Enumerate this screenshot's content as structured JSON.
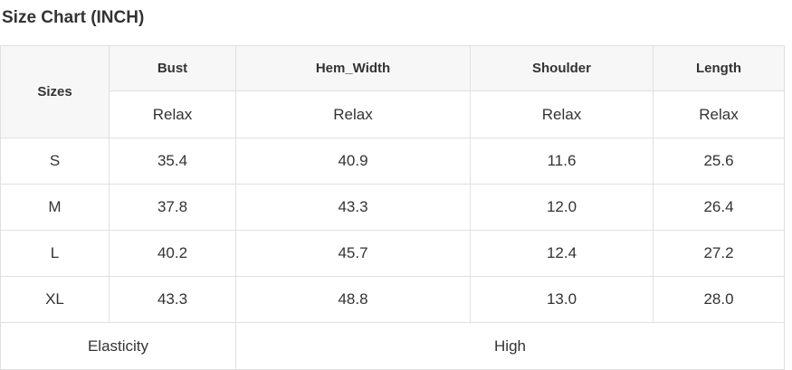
{
  "title": "Size Chart (INCH)",
  "chart_data": {
    "type": "table",
    "title": "Size Chart (INCH)",
    "unit": "INCH",
    "columns": [
      "Sizes",
      "Bust",
      "Hem_Width",
      "Shoulder",
      "Length"
    ],
    "fit_type_row": [
      "Relax",
      "Relax",
      "Relax",
      "Relax"
    ],
    "rows": [
      [
        "S",
        35.4,
        40.9,
        11.6,
        25.6
      ],
      [
        "M",
        37.8,
        43.3,
        12.0,
        26.4
      ],
      [
        "L",
        40.2,
        45.7,
        12.4,
        27.2
      ],
      [
        "XL",
        43.3,
        48.8,
        13.0,
        28.0
      ]
    ],
    "footer": [
      "Elasticity",
      "High"
    ]
  },
  "table": {
    "size_col_header": "Sizes",
    "measure_headers": [
      "Bust",
      "Hem_Width",
      "Shoulder",
      "Length"
    ],
    "fit_row": [
      "Relax",
      "Relax",
      "Relax",
      "Relax"
    ],
    "rows": [
      {
        "size": "S",
        "values": [
          "35.4",
          "40.9",
          "11.6",
          "25.6"
        ]
      },
      {
        "size": "M",
        "values": [
          "37.8",
          "43.3",
          "12.0",
          "26.4"
        ]
      },
      {
        "size": "L",
        "values": [
          "40.2",
          "45.7",
          "12.4",
          "27.2"
        ]
      },
      {
        "size": "XL",
        "values": [
          "43.3",
          "48.8",
          "13.0",
          "28.0"
        ]
      }
    ],
    "footer": {
      "label": "Elasticity",
      "value": "High"
    }
  },
  "colors": {
    "header_bg": "#f7f7f7",
    "border": "#e0e0e0",
    "text": "#333333",
    "background": "#ffffff"
  }
}
